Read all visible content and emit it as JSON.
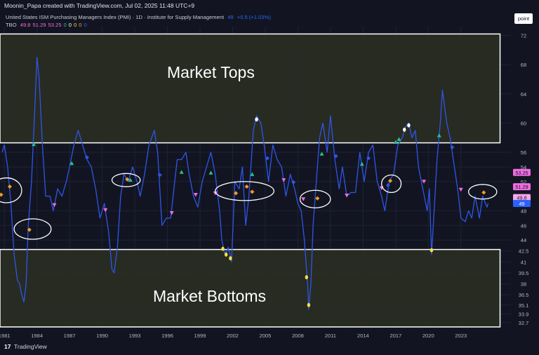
{
  "header": {
    "credit": "Moonin_Papa created with TradingView.com, Jul 02, 2025 11:48 UTC+9",
    "scale_button": "point"
  },
  "legend": {
    "line1_title": "United States ISM Purchasing Managers Index (PMI) · 1D · Institute for Supply Management",
    "line1_value": "49",
    "line1_change": "+0.5 (+1.03%)",
    "line2_name": "TBO",
    "line2_values": [
      {
        "text": "49.8",
        "color": "#f06be0"
      },
      {
        "text": "51.29",
        "color": "#f06be0"
      },
      {
        "text": "53.25",
        "color": "#f06be0"
      },
      {
        "text": "0",
        "color": "#26c281"
      },
      {
        "text": "0",
        "color": "#ffffff"
      },
      {
        "text": "0",
        "color": "#f5e042"
      },
      {
        "text": "0",
        "color": "#f59b23"
      },
      {
        "text": "0",
        "color": "#2962ff"
      }
    ]
  },
  "zones": {
    "tops_label": "Market Tops",
    "bottoms_label": "Market Bottoms"
  },
  "footer": {
    "logo_text": "TradingView"
  },
  "chart_data": {
    "type": "line",
    "title": "United States ISM Purchasing Managers Index (PMI)",
    "x_axis_ticks": [
      "1981",
      "1984",
      "1987",
      "1990",
      "1993",
      "1996",
      "1999",
      "2002",
      "2005",
      "2008",
      "2011",
      "2014",
      "2017",
      "2020",
      "2023"
    ],
    "x_tick_years": [
      1981,
      1984,
      1987,
      1990,
      1993,
      1996,
      1999,
      2002,
      2005,
      2008,
      2011,
      2014,
      2017,
      2020,
      2023
    ],
    "xlim": [
      1980.6,
      2027.6
    ],
    "y_axis_ticks": [
      "72",
      "68",
      "64",
      "60",
      "56",
      "54",
      "52",
      "48",
      "46",
      "44",
      "42.5",
      "41",
      "39.5",
      "38",
      "36.5",
      "35.1",
      "33.9",
      "32.7"
    ],
    "y_tick_values": [
      72,
      68,
      64,
      60,
      56,
      54,
      52,
      48,
      46,
      44,
      42.5,
      41,
      39.5,
      38,
      36.5,
      35.1,
      33.9,
      32.7
    ],
    "ylim": [
      32.1,
      73.2
    ],
    "grid": true,
    "series": [
      {
        "color": "#2f55e8",
        "points": [
          [
            1980.8,
            56
          ],
          [
            1981.0,
            57
          ],
          [
            1981.3,
            54
          ],
          [
            1981.6,
            49
          ],
          [
            1981.9,
            42
          ],
          [
            1982.2,
            38.5
          ],
          [
            1982.4,
            38
          ],
          [
            1982.6,
            36.5
          ],
          [
            1982.8,
            35.5
          ],
          [
            1983.0,
            38
          ],
          [
            1983.2,
            46
          ],
          [
            1983.5,
            52
          ],
          [
            1983.8,
            62
          ],
          [
            1984.0,
            69
          ],
          [
            1984.2,
            66
          ],
          [
            1984.5,
            57
          ],
          [
            1984.8,
            50
          ],
          [
            1985.2,
            50
          ],
          [
            1985.5,
            48
          ],
          [
            1985.9,
            51
          ],
          [
            1986.3,
            50
          ],
          [
            1986.7,
            52
          ],
          [
            1987.0,
            54
          ],
          [
            1987.4,
            57
          ],
          [
            1987.8,
            59
          ],
          [
            1988.2,
            57
          ],
          [
            1988.6,
            55
          ],
          [
            1989.0,
            54
          ],
          [
            1989.4,
            51
          ],
          [
            1989.8,
            47
          ],
          [
            1990.2,
            49
          ],
          [
            1990.6,
            45
          ],
          [
            1990.9,
            40
          ],
          [
            1991.1,
            39.5
          ],
          [
            1991.4,
            43
          ],
          [
            1991.7,
            50
          ],
          [
            1992.0,
            53
          ],
          [
            1992.4,
            52
          ],
          [
            1992.8,
            54
          ],
          [
            1993.2,
            52
          ],
          [
            1993.5,
            50
          ],
          [
            1993.9,
            53
          ],
          [
            1994.3,
            57
          ],
          [
            1994.8,
            59
          ],
          [
            1995.1,
            56
          ],
          [
            1995.5,
            46
          ],
          [
            1995.9,
            47
          ],
          [
            1996.3,
            47
          ],
          [
            1996.6,
            51
          ],
          [
            1996.9,
            55
          ],
          [
            1997.3,
            55
          ],
          [
            1997.7,
            56
          ],
          [
            1998.0,
            53
          ],
          [
            1998.4,
            50
          ],
          [
            1998.8,
            48.5
          ],
          [
            1999.2,
            52
          ],
          [
            1999.6,
            54
          ],
          [
            2000.0,
            56
          ],
          [
            2000.4,
            53
          ],
          [
            2000.8,
            48
          ],
          [
            2001.0,
            44
          ],
          [
            2001.3,
            42
          ],
          [
            2001.6,
            43
          ],
          [
            2001.9,
            41
          ],
          [
            2002.2,
            52
          ],
          [
            2002.6,
            51
          ],
          [
            2002.9,
            54
          ],
          [
            2003.2,
            46
          ],
          [
            2003.5,
            50
          ],
          [
            2003.9,
            59
          ],
          [
            2004.2,
            61
          ],
          [
            2004.6,
            60
          ],
          [
            2004.9,
            57
          ],
          [
            2005.3,
            52
          ],
          [
            2005.7,
            57
          ],
          [
            2006.1,
            55
          ],
          [
            2006.5,
            54
          ],
          [
            2006.9,
            50
          ],
          [
            2007.3,
            53
          ],
          [
            2007.7,
            51
          ],
          [
            2008.0,
            49
          ],
          [
            2008.3,
            48
          ],
          [
            2008.6,
            44
          ],
          [
            2008.9,
            38
          ],
          [
            2009.0,
            34.5
          ],
          [
            2009.2,
            38
          ],
          [
            2009.4,
            46
          ],
          [
            2009.7,
            52
          ],
          [
            2010.0,
            58
          ],
          [
            2010.3,
            60
          ],
          [
            2010.7,
            56
          ],
          [
            2011.0,
            61
          ],
          [
            2011.4,
            55
          ],
          [
            2011.8,
            51
          ],
          [
            2012.1,
            54
          ],
          [
            2012.5,
            50
          ],
          [
            2012.9,
            50.5
          ],
          [
            2013.3,
            50.5
          ],
          [
            2013.7,
            56
          ],
          [
            2014.1,
            52
          ],
          [
            2014.5,
            56
          ],
          [
            2014.9,
            57
          ],
          [
            2015.3,
            52
          ],
          [
            2015.7,
            50
          ],
          [
            2016.0,
            48
          ],
          [
            2016.4,
            52
          ],
          [
            2016.8,
            53
          ],
          [
            2017.2,
            57
          ],
          [
            2017.6,
            58
          ],
          [
            2017.9,
            59.5
          ],
          [
            2018.2,
            60
          ],
          [
            2018.5,
            58
          ],
          [
            2018.8,
            59
          ],
          [
            2019.1,
            54
          ],
          [
            2019.5,
            51
          ],
          [
            2019.9,
            48
          ],
          [
            2020.1,
            51
          ],
          [
            2020.3,
            42
          ],
          [
            2020.5,
            47
          ],
          [
            2020.8,
            55
          ],
          [
            2021.1,
            60
          ],
          [
            2021.3,
            64.5
          ],
          [
            2021.7,
            60
          ],
          [
            2022.0,
            58
          ],
          [
            2022.3,
            55
          ],
          [
            2022.7,
            51
          ],
          [
            2023.0,
            47
          ],
          [
            2023.4,
            46.5
          ],
          [
            2023.7,
            48
          ],
          [
            2024.0,
            47
          ],
          [
            2024.3,
            50
          ],
          [
            2024.7,
            47
          ],
          [
            2025.0,
            50
          ],
          [
            2025.4,
            48.5
          ],
          [
            2025.5,
            49
          ]
        ]
      }
    ],
    "zones": [
      {
        "name": "Market Tops",
        "y_range": [
          57.3,
          72.2
        ],
        "x_range": [
          1980.6,
          2026.6
        ]
      },
      {
        "name": "Market Bottoms",
        "y_range": [
          32.1,
          42.7
        ],
        "x_range": [
          1980.6,
          2026.6
        ]
      }
    ],
    "price_labels": [
      {
        "text": "53.25",
        "value": 53.25,
        "bg": "#f06be0",
        "fg": "#131722"
      },
      {
        "text": "51.29",
        "value": 51.29,
        "bg": "#f06be0",
        "fg": "#131722"
      },
      {
        "text": "49.8",
        "value": 49.8,
        "bg": "#f7a8ee",
        "fg": "#131722"
      },
      {
        "text": "49",
        "value": 49.0,
        "bg": "#2962ff",
        "fg": "#ffffff"
      }
    ],
    "markers": [
      {
        "shape": "diamond",
        "color": "#f59b23",
        "x": 1980.7,
        "y": 50.2
      },
      {
        "shape": "diamond",
        "color": "#f59b23",
        "x": 1981.5,
        "y": 51.3
      },
      {
        "shape": "diamond",
        "color": "#f59b23",
        "x": 1983.3,
        "y": 45.4
      },
      {
        "shape": "triangle-up",
        "color": "#26c281",
        "x": 1983.7,
        "y": 57.1
      },
      {
        "shape": "triangle-down",
        "color": "#f06be0",
        "x": 1985.6,
        "y": 48.8
      },
      {
        "shape": "triangle-up",
        "color": "#26c281",
        "x": 1987.2,
        "y": 54.5
      },
      {
        "shape": "diamond",
        "color": "#2f55e8",
        "x": 1988.6,
        "y": 55.3
      },
      {
        "shape": "triangle-down",
        "color": "#f06be0",
        "x": 1990.3,
        "y": 48.1
      },
      {
        "shape": "diamond",
        "color": "#f59b23",
        "x": 1992.3,
        "y": 52.3
      },
      {
        "shape": "triangle-up",
        "color": "#26c281",
        "x": 1992.6,
        "y": 52.2
      },
      {
        "shape": "diamond",
        "color": "#2f55e8",
        "x": 1995.3,
        "y": 52.9
      },
      {
        "shape": "triangle-down",
        "color": "#f06be0",
        "x": 1996.4,
        "y": 47.7
      },
      {
        "shape": "triangle-up",
        "color": "#26c281",
        "x": 1997.3,
        "y": 53.3
      },
      {
        "shape": "triangle-down",
        "color": "#f06be0",
        "x": 1998.6,
        "y": 50.2
      },
      {
        "shape": "triangle-up",
        "color": "#26c281",
        "x": 2000.0,
        "y": 53.2
      },
      {
        "shape": "triangle-down",
        "color": "#f06be0",
        "x": 2000.4,
        "y": 50.4
      },
      {
        "shape": "dot",
        "color": "#f5e042",
        "x": 2001.1,
        "y": 42.8
      },
      {
        "shape": "dot",
        "color": "#f5e042",
        "x": 2001.4,
        "y": 42.0
      },
      {
        "shape": "dot",
        "color": "#f5e042",
        "x": 2001.8,
        "y": 41.5
      },
      {
        "shape": "diamond",
        "color": "#f59b23",
        "x": 2002.3,
        "y": 50.4
      },
      {
        "shape": "diamond",
        "color": "#f59b23",
        "x": 2003.3,
        "y": 51.3
      },
      {
        "shape": "diamond",
        "color": "#f59b23",
        "x": 2003.8,
        "y": 50.6
      },
      {
        "shape": "triangle-up",
        "color": "#26c281",
        "x": 2003.8,
        "y": 53.0
      },
      {
        "shape": "dot",
        "color": "#ffffff",
        "x": 2004.2,
        "y": 60.5
      },
      {
        "shape": "diamond",
        "color": "#2f55e8",
        "x": 2005.2,
        "y": 55.2
      },
      {
        "shape": "triangle-down",
        "color": "#f06be0",
        "x": 2006.7,
        "y": 52.2
      },
      {
        "shape": "diamond",
        "color": "#2f55e8",
        "x": 2007.6,
        "y": 51.9
      },
      {
        "shape": "dot",
        "color": "#f5e042",
        "x": 2008.8,
        "y": 38.9
      },
      {
        "shape": "dot",
        "color": "#f5e042",
        "x": 2009.0,
        "y": 35.1
      },
      {
        "shape": "triangle-down",
        "color": "#f06be0",
        "x": 2008.5,
        "y": 49.6
      },
      {
        "shape": "diamond",
        "color": "#f59b23",
        "x": 2009.8,
        "y": 49.7
      },
      {
        "shape": "triangle-up",
        "color": "#26c281",
        "x": 2010.2,
        "y": 55.8
      },
      {
        "shape": "diamond",
        "color": "#2f55e8",
        "x": 2011.5,
        "y": 55.5
      },
      {
        "shape": "triangle-down",
        "color": "#f06be0",
        "x": 2012.5,
        "y": 50.1
      },
      {
        "shape": "triangle-up",
        "color": "#26c281",
        "x": 2013.9,
        "y": 54.4
      },
      {
        "shape": "diamond",
        "color": "#2f55e8",
        "x": 2014.5,
        "y": 55.2
      },
      {
        "shape": "triangle-down",
        "color": "#f06be0",
        "x": 2015.7,
        "y": 51.1
      },
      {
        "shape": "diamond",
        "color": "#f59b23",
        "x": 2016.5,
        "y": 52.1
      },
      {
        "shape": "diamond",
        "color": "#2f55e8",
        "x": 2016.3,
        "y": 51.5
      },
      {
        "shape": "triangle-up",
        "color": "#26c281",
        "x": 2017.0,
        "y": 57.4
      },
      {
        "shape": "triangle-up",
        "color": "#26c281",
        "x": 2017.3,
        "y": 57.8
      },
      {
        "shape": "dot",
        "color": "#ffffff",
        "x": 2017.8,
        "y": 59.1
      },
      {
        "shape": "dot",
        "color": "#ffffff",
        "x": 2018.2,
        "y": 59.7
      },
      {
        "shape": "triangle-down",
        "color": "#f06be0",
        "x": 2019.6,
        "y": 52.0
      },
      {
        "shape": "dot",
        "color": "#f5e042",
        "x": 2020.3,
        "y": 42.6
      },
      {
        "shape": "triangle-up",
        "color": "#26c281",
        "x": 2021.0,
        "y": 58.3
      },
      {
        "shape": "diamond",
        "color": "#2f55e8",
        "x": 2022.2,
        "y": 56.7
      },
      {
        "shape": "triangle-down",
        "color": "#f06be0",
        "x": 2023.0,
        "y": 50.9
      },
      {
        "shape": "diamond",
        "color": "#f59b23",
        "x": 2025.1,
        "y": 50.5
      }
    ],
    "annotations": [
      {
        "shape": "ellipse",
        "x": 1981.2,
        "y": 50.8,
        "rx_years": 1.4,
        "ry_units": 1.7
      },
      {
        "shape": "ellipse",
        "x": 1983.6,
        "y": 45.5,
        "rx_years": 1.7,
        "ry_units": 1.4
      },
      {
        "shape": "ellipse",
        "x": 1992.2,
        "y": 52.2,
        "rx_years": 1.3,
        "ry_units": 0.9
      },
      {
        "shape": "ellipse",
        "x": 2003.1,
        "y": 50.7,
        "rx_years": 2.7,
        "ry_units": 1.3
      },
      {
        "shape": "ellipse",
        "x": 2009.6,
        "y": 49.6,
        "rx_years": 1.4,
        "ry_units": 1.2
      },
      {
        "shape": "ellipse",
        "x": 2016.6,
        "y": 51.7,
        "rx_years": 0.9,
        "ry_units": 1.2
      },
      {
        "shape": "ellipse",
        "x": 2025.0,
        "y": 50.6,
        "rx_years": 1.3,
        "ry_units": 1.0
      }
    ]
  }
}
